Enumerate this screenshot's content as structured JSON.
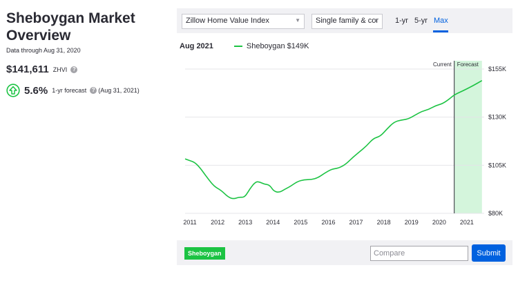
{
  "overview": {
    "title_line1": "Sheboygan Market",
    "title_line2": "Overview",
    "data_through": "Data through Aug 31, 2020",
    "zhvi_value": "$141,611",
    "zhvi_label": "ZHVI",
    "forecast_pct": "5.6%",
    "forecast_label": "1-yr forecast",
    "forecast_date": "(Aug 31, 2021)"
  },
  "controls": {
    "index_select": "Zillow Home Value Index",
    "type_select": "Single family & cor",
    "ranges": [
      "1-yr",
      "5-yr",
      "Max"
    ],
    "active_range": "Max"
  },
  "legend": {
    "date": "Aug 2021",
    "series_label": "Sheboygan $149K"
  },
  "chart_data": {
    "type": "line",
    "x_ticks": [
      "2011",
      "2012",
      "2013",
      "2014",
      "2015",
      "2016",
      "2017",
      "2018",
      "2019",
      "2020",
      "2021"
    ],
    "y_ticks": [
      "$80K",
      "$105K",
      "$130K",
      "$155K"
    ],
    "ylim": [
      80000,
      155000
    ],
    "xlim": [
      2010.95,
      2021.75
    ],
    "current_label": "Current",
    "forecast_label": "Forecast",
    "current_x": 2020.67,
    "forecast_end_x": 2021.67,
    "color": "#1cc343",
    "forecast_fill": "#d4f5dc",
    "series": [
      {
        "x": [
          2010.95,
          2011.1,
          2011.3,
          2011.5,
          2011.75,
          2012.0,
          2012.25,
          2012.5,
          2012.7,
          2012.9,
          2013.1,
          2013.3,
          2013.5,
          2013.65,
          2013.8,
          2014.0,
          2014.15,
          2014.35,
          2014.55,
          2014.75,
          2015.0,
          2015.25,
          2015.5,
          2015.75,
          2016.0,
          2016.25,
          2016.5,
          2016.75,
          2017.0,
          2017.25,
          2017.5,
          2017.75,
          2018.0,
          2018.25,
          2018.5,
          2018.75,
          2019.0,
          2019.25,
          2019.5,
          2019.75,
          2020.0,
          2020.25,
          2020.5,
          2020.67,
          2021.0,
          2021.33,
          2021.67
        ],
        "y": [
          108300,
          107500,
          106500,
          103500,
          98500,
          94000,
          92000,
          88500,
          87400,
          88500,
          88200,
          93000,
          96500,
          96300,
          95200,
          94800,
          91500,
          90800,
          92500,
          94000,
          96500,
          97500,
          97500,
          98500,
          101000,
          103000,
          103500,
          105500,
          109000,
          112000,
          115000,
          119000,
          120000,
          124000,
          127500,
          128500,
          129000,
          131000,
          133000,
          134000,
          136000,
          137000,
          139500,
          141611,
          143800,
          146200,
          149000
        ]
      }
    ]
  },
  "bottom": {
    "tag_label": "Sheboygan",
    "compare_placeholder": "Compare",
    "submit_label": "Submit"
  },
  "icons": {
    "help": "question-mark-circle",
    "forecast": "up-arrow-circle"
  }
}
